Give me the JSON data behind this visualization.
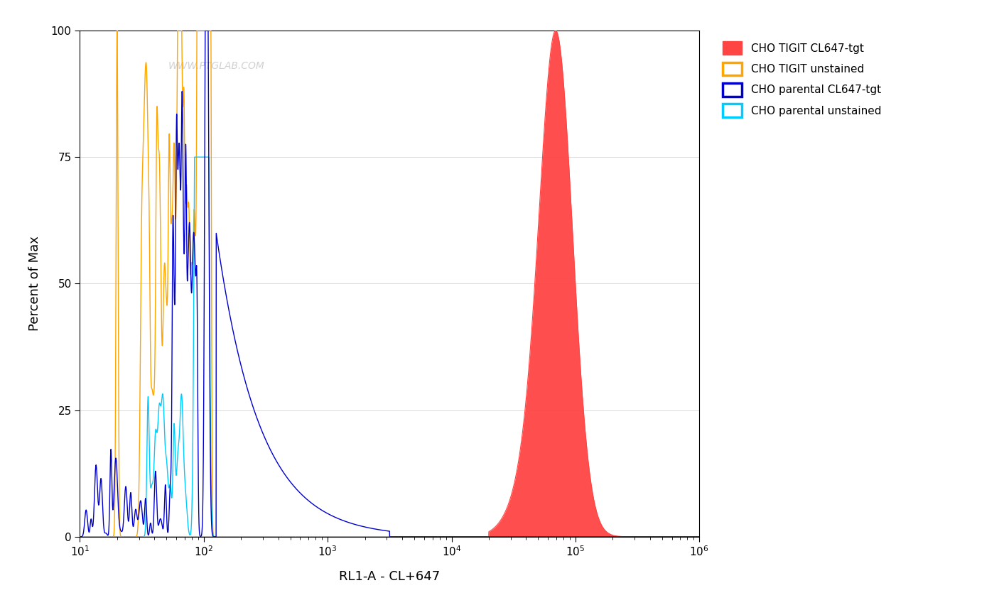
{
  "title": "",
  "xlabel": "RL1-A - CL+647",
  "ylabel": "Percent of Max",
  "xlim_log": [
    1,
    6
  ],
  "ylim": [
    0,
    100
  ],
  "yticks": [
    0,
    25,
    50,
    75,
    100
  ],
  "watermark": "WWW.PTGLAB.COM",
  "legend_labels": [
    "CHO TIGIT CL647-tgt",
    "CHO TIGIT unstained",
    "CHO parental CL647-tgt",
    "CHO parental unstained"
  ],
  "legend_colors": [
    "#FF4444",
    "#FFA500",
    "#0000CD",
    "#00CCFF"
  ],
  "legend_fill": [
    true,
    false,
    false,
    false
  ],
  "background_color": "#FFFFFF",
  "plot_bg_color": "#FFFFFF",
  "figsize": [
    14.06,
    8.59
  ],
  "dpi": 100
}
